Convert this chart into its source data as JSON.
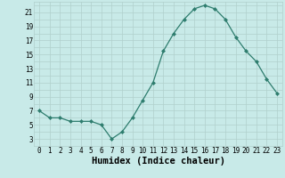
{
  "x": [
    0,
    1,
    2,
    3,
    4,
    5,
    6,
    7,
    8,
    9,
    10,
    11,
    12,
    13,
    14,
    15,
    16,
    17,
    18,
    19,
    20,
    21,
    22,
    23
  ],
  "y": [
    7,
    6,
    6,
    5.5,
    5.5,
    5.5,
    5,
    3,
    4,
    6,
    8.5,
    11,
    15.5,
    18,
    20,
    21.5,
    22,
    21.5,
    20,
    17.5,
    15.5,
    14,
    11.5,
    9.5
  ],
  "line_color": "#2e7d6e",
  "marker": "D",
  "marker_size": 2.0,
  "bg_color": "#c8eae8",
  "grid_color": "#b0d0cc",
  "xlabel": "Humidex (Indice chaleur)",
  "xlabel_weight": "bold",
  "xlim": [
    -0.5,
    23.5
  ],
  "ylim": [
    2,
    22.5
  ],
  "yticks": [
    3,
    5,
    7,
    9,
    11,
    13,
    15,
    17,
    19,
    21
  ],
  "xticks": [
    0,
    1,
    2,
    3,
    4,
    5,
    6,
    7,
    8,
    9,
    10,
    11,
    12,
    13,
    14,
    15,
    16,
    17,
    18,
    19,
    20,
    21,
    22,
    23
  ],
  "tick_fontsize": 5.5,
  "xlabel_fontsize": 7.5
}
